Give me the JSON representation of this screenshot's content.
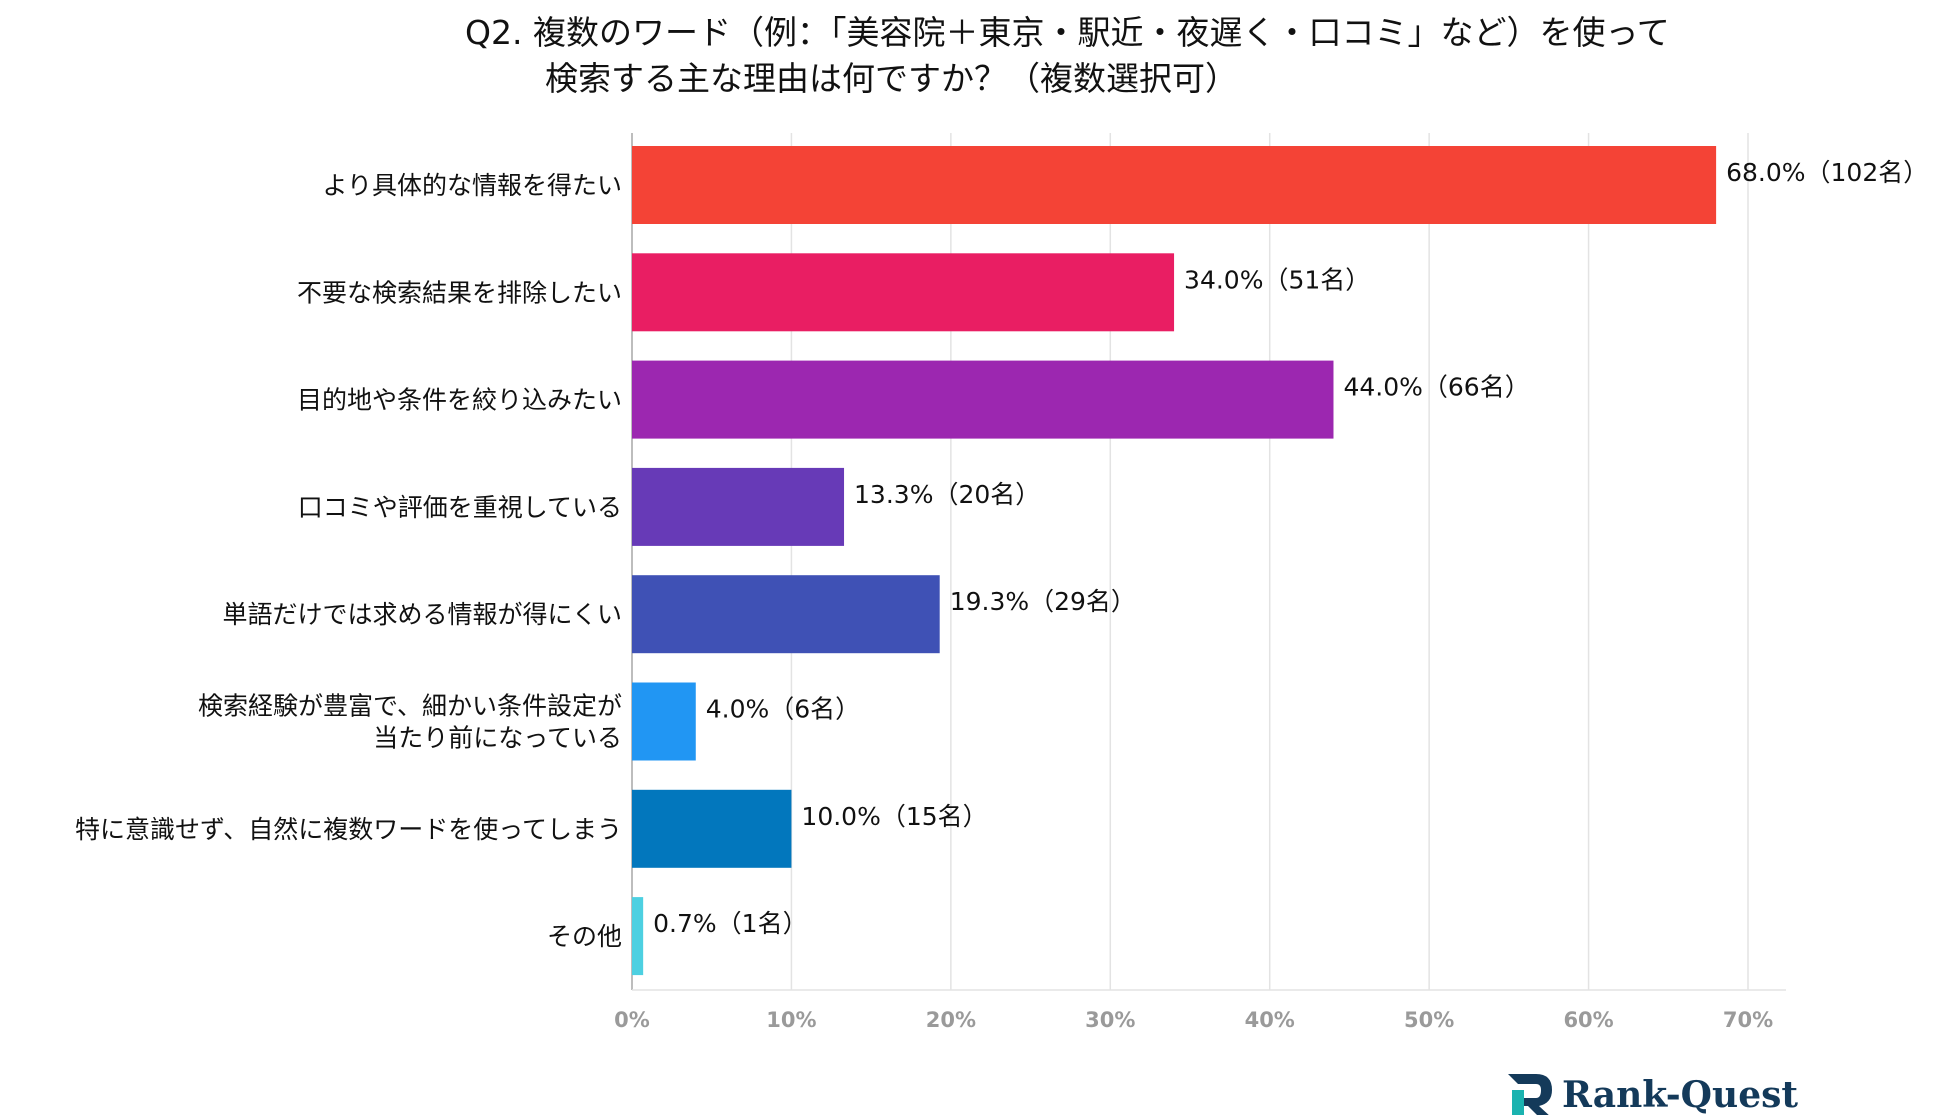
{
  "chart_data": {
    "type": "bar",
    "orientation": "horizontal",
    "title_lines": [
      "Q2. 複数のワード（例：「美容院＋東京・駅近・夜遅く・口コミ」など）を使って",
      "検索する主な理由は何ですか？（複数選択可）"
    ],
    "categories": [
      [
        "より具体的な情報を得たい"
      ],
      [
        "不要な検索結果を排除したい"
      ],
      [
        "目的地や条件を絞り込みたい"
      ],
      [
        "口コミや評価を重視している"
      ],
      [
        "単語だけでは求める情報が得にくい"
      ],
      [
        "検索経験が豊富で、細かい条件設定が",
        "当たり前になっている"
      ],
      [
        "特に意識せず、自然に複数ワードを使ってしまう"
      ],
      [
        "その他"
      ]
    ],
    "values": [
      68.0,
      34.0,
      44.0,
      13.3,
      19.3,
      4.0,
      10.0,
      0.7
    ],
    "data_labels": [
      "68.0%（102名）",
      "34.0%（51名）",
      "44.0%（66名）",
      "13.3%（20名）",
      "19.3%（29名）",
      "4.0%（6名）",
      "10.0%（15名）",
      "0.7%（1名）"
    ],
    "colors": [
      "#f44336",
      "#e91e63",
      "#9c27b0",
      "#673ab7",
      "#3f51b5",
      "#2196f3",
      "#0277bd",
      "#4dd0e1"
    ],
    "xlim": [
      0,
      70
    ],
    "xticks": [
      "0%",
      "10%",
      "20%",
      "30%",
      "40%",
      "50%",
      "60%",
      "70%"
    ],
    "grid": true
  },
  "brand": {
    "name": "Rank-Quest",
    "logo_icon": "rank-quest-logo-icon"
  }
}
